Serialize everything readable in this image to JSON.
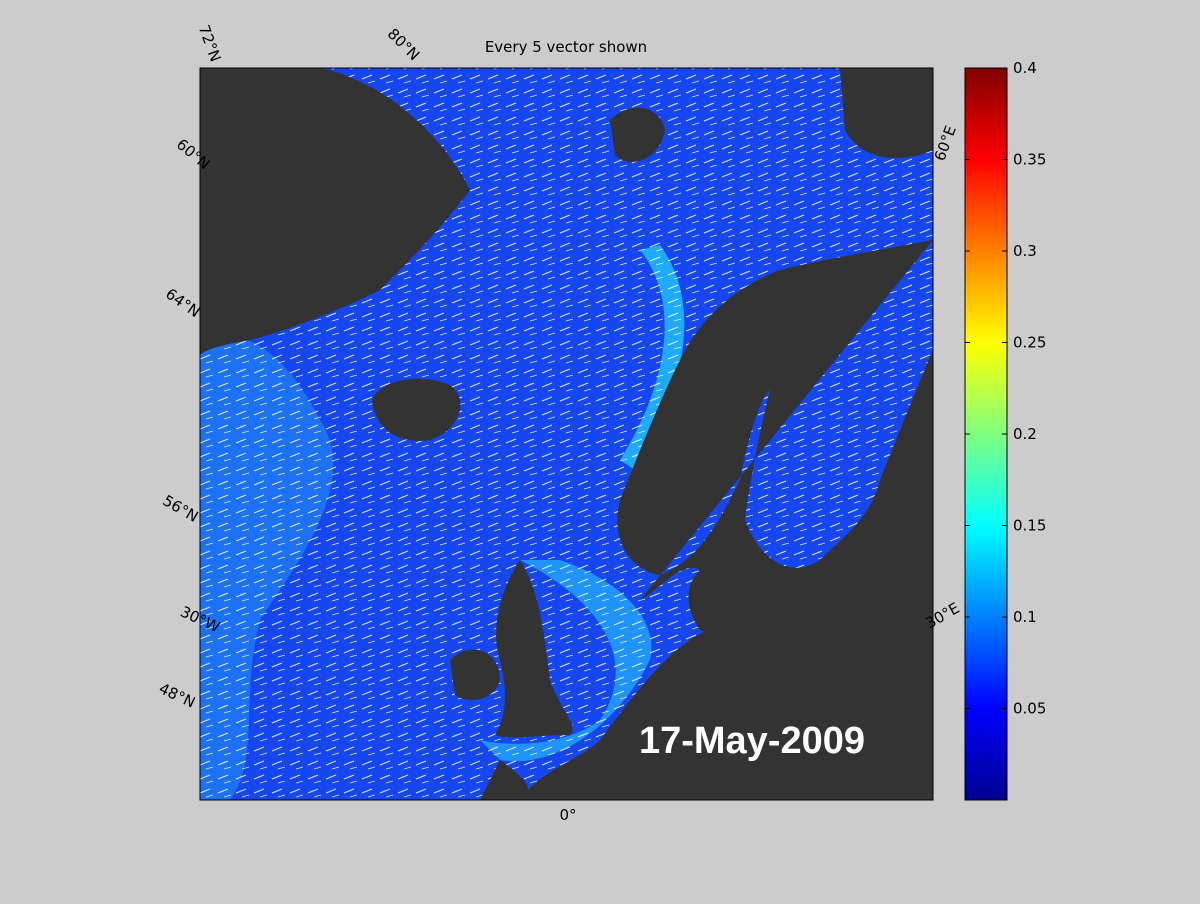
{
  "map": {
    "title": "Every 5 vector shown",
    "date_label": "17-May-2009",
    "graticule_labels": [
      "72°N",
      "80°N",
      "60°N",
      "64°N",
      "56°N",
      "30°W",
      "48°N",
      "0°",
      "60°E",
      "30°E"
    ],
    "colorbar": {
      "ylim": [
        0,
        0.4
      ],
      "yticks": [
        0.05,
        0.1,
        0.15,
        0.2,
        0.25,
        0.3,
        0.35,
        0.4
      ],
      "colormap": [
        "#00008f",
        "#0000ff",
        "#0080ff",
        "#00ffff",
        "#80ff80",
        "#ffff00",
        "#ff8000",
        "#ff0000",
        "#800000"
      ]
    }
  }
}
